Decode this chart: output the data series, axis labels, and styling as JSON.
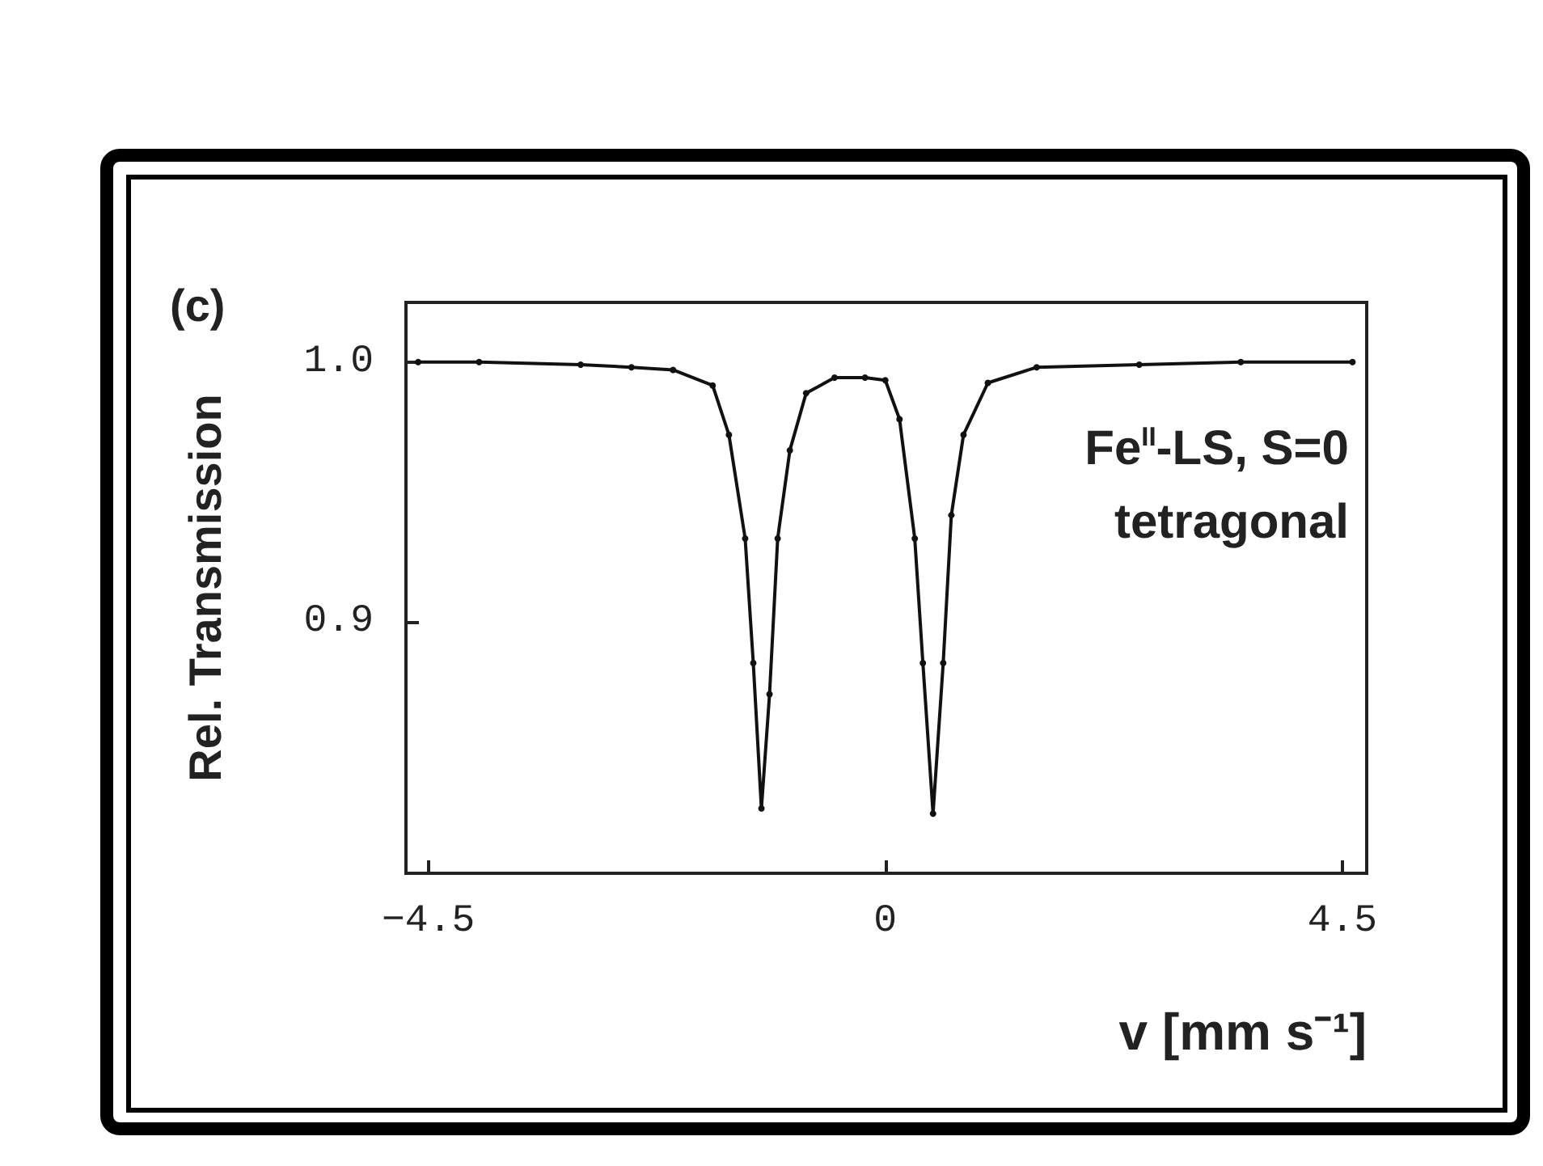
{
  "chart_data": {
    "type": "line",
    "title": "(c)",
    "xlabel": "v [mm s⁻¹]",
    "ylabel": "Rel. Transmission",
    "annotations": [
      "Fe$^{II}$-LS, S=0",
      "tetragonal"
    ],
    "xlim": [
      -4.72,
      4.74
    ],
    "xticks": [
      -4.5,
      0,
      4.5
    ],
    "ylim": [
      0.803,
      1.023
    ],
    "yticks": [
      0.9,
      {
        "value": 1.0,
        "label": "1.0"
      }
    ],
    "grid": false,
    "marker": "circle",
    "line_style": "solid",
    "series": [
      {
        "color": "#111111",
        "x": [
          -4.6,
          -4.0,
          -3.0,
          -2.5,
          -2.09,
          -1.7,
          -1.54,
          -1.38,
          -1.3,
          -1.22,
          -1.14,
          -1.06,
          -0.94,
          -0.78,
          -0.5,
          -0.2,
          0.0,
          0.14,
          0.29,
          0.37,
          0.47,
          0.57,
          0.65,
          0.77,
          1.01,
          1.49,
          2.5,
          3.5,
          4.6
        ],
        "values": [
          1.0,
          1.0,
          0.999,
          0.998,
          0.997,
          0.991,
          0.972,
          0.932,
          0.884,
          0.828,
          0.872,
          0.932,
          0.966,
          0.988,
          0.994,
          0.994,
          0.993,
          0.978,
          0.932,
          0.884,
          0.826,
          0.884,
          0.941,
          0.972,
          0.992,
          0.998,
          0.999,
          1.0,
          1.0
        ]
      }
    ]
  }
}
